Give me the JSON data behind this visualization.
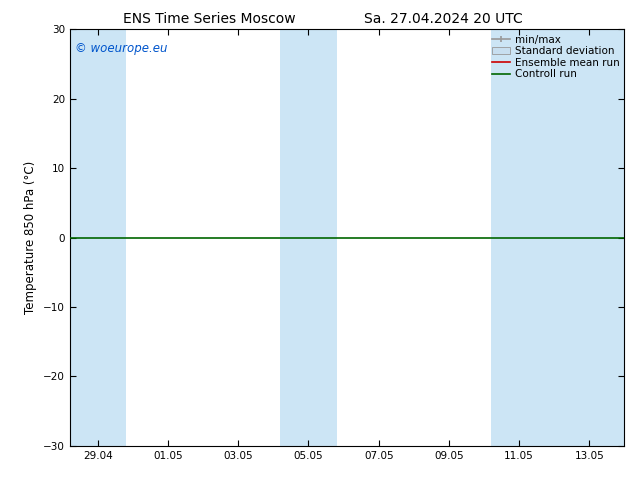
{
  "title_left": "ENS Time Series Moscow",
  "title_right": "Sa. 27.04.2024 20 UTC",
  "ylabel": "Temperature 850 hPa (°C)",
  "ylim": [
    -30,
    30
  ],
  "yticks": [
    -30,
    -20,
    -10,
    0,
    10,
    20,
    30
  ],
  "x_tick_labels": [
    "29.04",
    "01.05",
    "03.05",
    "05.05",
    "07.05",
    "09.05",
    "11.05",
    "13.05"
  ],
  "x_tick_positions": [
    0,
    2,
    4,
    6,
    8,
    10,
    12,
    14
  ],
  "x_min": -0.8,
  "x_max": 15.0,
  "watermark": "© woeurope.eu",
  "watermark_color": "#0055cc",
  "background_color": "#ffffff",
  "plot_bg_color": "#ffffff",
  "shaded_bands": [
    {
      "x_start": -0.8,
      "x_end": 0.8,
      "color": "#cce5f5"
    },
    {
      "x_start": 5.2,
      "x_end": 6.8,
      "color": "#cce5f5"
    },
    {
      "x_start": 11.2,
      "x_end": 15.0,
      "color": "#cce5f5"
    }
  ],
  "hline_y": 0,
  "hline_color": "#006600",
  "hline_linewidth": 1.2,
  "ensemble_mean_color": "#cc0000",
  "control_run_color": "#006600",
  "minmax_color": "#999999",
  "std_dev_color": "#c8dff0",
  "legend_items": [
    "min/max",
    "Standard deviation",
    "Ensemble mean run",
    "Controll run"
  ],
  "title_fontsize": 10,
  "label_fontsize": 8.5,
  "tick_fontsize": 7.5,
  "watermark_fontsize": 8.5,
  "legend_fontsize": 7.5
}
